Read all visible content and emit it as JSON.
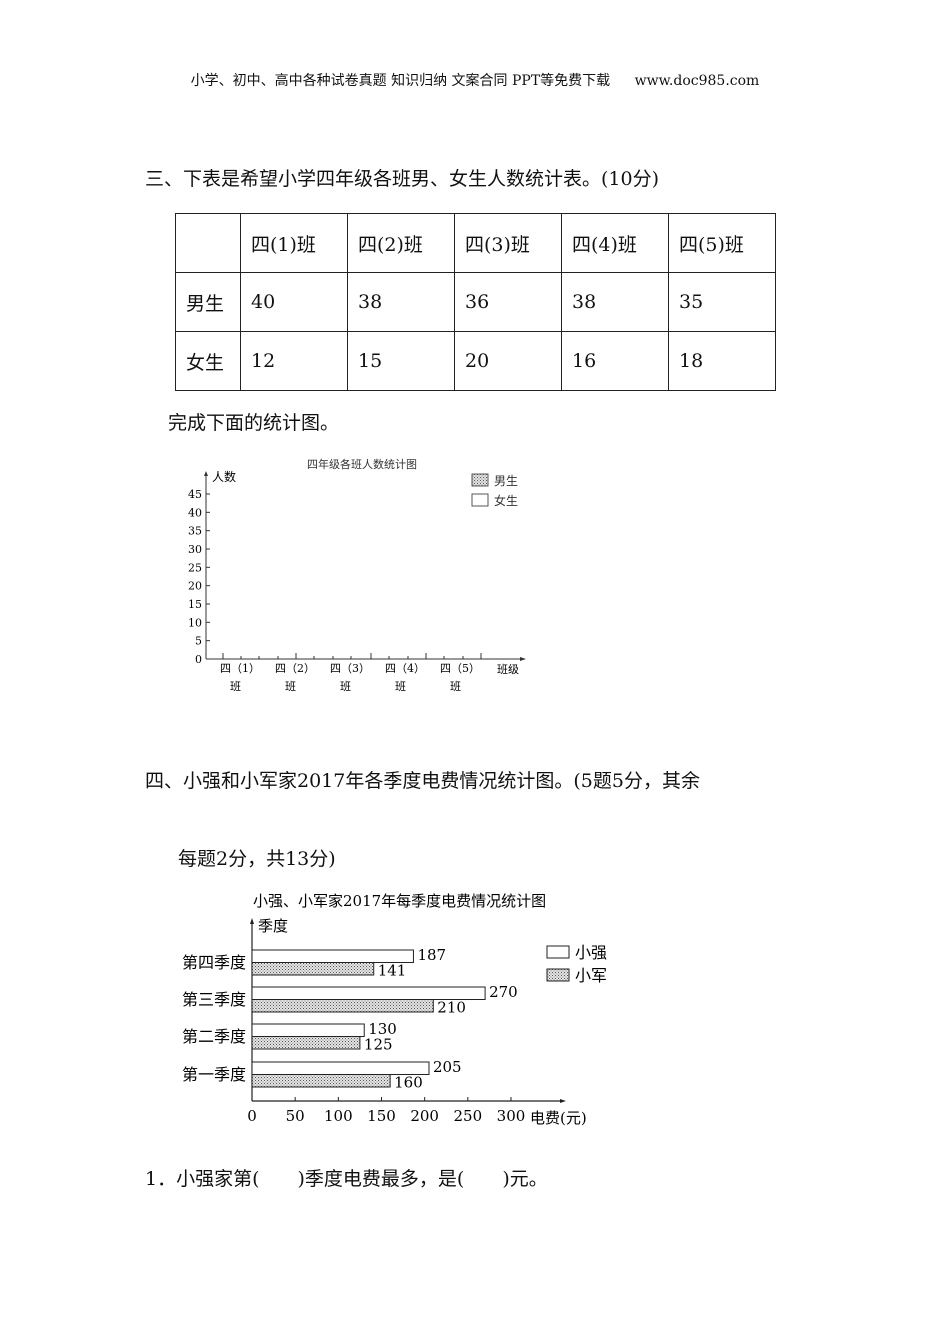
{
  "header": {
    "left": "小学、初中、高中各种试卷真题 知识归纳 文案合同 PPT等免费下载",
    "right": "www.doc985.com"
  },
  "section3": {
    "title": "三、下表是希望小学四年级各班男、女生人数统计表。(10分)",
    "table": {
      "columns": [
        "",
        "四(1)班",
        "四(2)班",
        "四(3)班",
        "四(4)班",
        "四(5)班"
      ],
      "rows": [
        {
          "label": "男生",
          "values": [
            "40",
            "38",
            "36",
            "38",
            "35"
          ]
        },
        {
          "label": "女生",
          "values": [
            "12",
            "15",
            "20",
            "16",
            "18"
          ]
        }
      ]
    },
    "instruction": "完成下面的统计图。"
  },
  "section4": {
    "title_line1": "四、小强和小军家2017年各季度电费情况统计图。(5题5分，其余",
    "title_line2": "每题2分，共13分)"
  },
  "question1": "1．小强家第(　　)季度电费最多，是(　　)元。",
  "chart_data": [
    {
      "type": "bar",
      "title": "四年级各班人数统计图",
      "ylabel": "人数",
      "xlabel": "班级",
      "categories": [
        [
          "四（1）",
          "班"
        ],
        [
          "四（2）",
          "班"
        ],
        [
          "四（3）",
          "班"
        ],
        [
          "四（4）",
          "班"
        ],
        [
          "四（5）",
          "班"
        ]
      ],
      "yticks": [
        0,
        5,
        10,
        15,
        20,
        25,
        30,
        35,
        40,
        45
      ],
      "ylim": [
        0,
        45
      ],
      "legend": [
        {
          "name": "男生",
          "fill": "stipple"
        },
        {
          "name": "女生",
          "fill": "white"
        }
      ],
      "legend_position": "top-right",
      "series": [],
      "grid": false
    },
    {
      "type": "bar",
      "orientation": "horizontal",
      "title": "小强、小军家2017年每季度电费情况统计图",
      "ylabel": "季度",
      "xlabel": "电费(元)",
      "categories": [
        "第四季度",
        "第三季度",
        "第二季度",
        "第一季度"
      ],
      "xticks": [
        0,
        50,
        100,
        150,
        200,
        250,
        300
      ],
      "xlim": [
        0,
        300
      ],
      "legend_position": "right",
      "series": [
        {
          "name": "小强",
          "fill": "white",
          "values": [
            187,
            270,
            130,
            205
          ]
        },
        {
          "name": "小军",
          "fill": "stipple",
          "values": [
            141,
            210,
            125,
            160
          ]
        }
      ],
      "grid": false
    }
  ]
}
